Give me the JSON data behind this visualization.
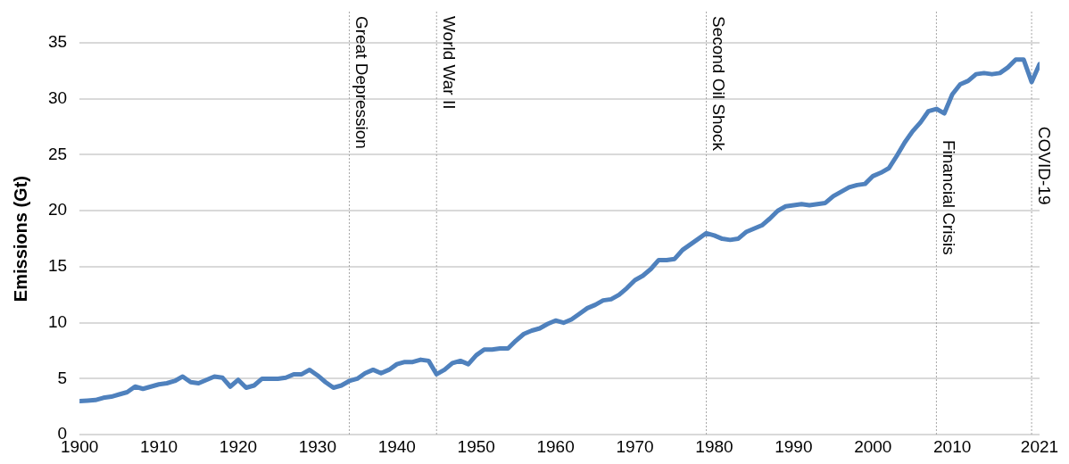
{
  "chart_data": {
    "type": "line",
    "ylabel": "Emissions (Gt)",
    "x": [
      1900,
      1901,
      1902,
      1903,
      1904,
      1905,
      1906,
      1907,
      1908,
      1909,
      1910,
      1911,
      1912,
      1913,
      1914,
      1915,
      1916,
      1917,
      1918,
      1919,
      1920,
      1921,
      1922,
      1923,
      1924,
      1925,
      1926,
      1927,
      1928,
      1929,
      1930,
      1931,
      1932,
      1933,
      1934,
      1935,
      1936,
      1937,
      1938,
      1939,
      1940,
      1941,
      1942,
      1943,
      1944,
      1945,
      1946,
      1947,
      1948,
      1949,
      1950,
      1951,
      1952,
      1953,
      1954,
      1955,
      1956,
      1957,
      1958,
      1959,
      1960,
      1961,
      1962,
      1963,
      1964,
      1965,
      1966,
      1967,
      1968,
      1969,
      1970,
      1971,
      1972,
      1973,
      1974,
      1975,
      1976,
      1977,
      1978,
      1979,
      1980,
      1981,
      1982,
      1983,
      1984,
      1985,
      1986,
      1987,
      1988,
      1989,
      1990,
      1991,
      1992,
      1993,
      1994,
      1995,
      1996,
      1997,
      1998,
      1999,
      2000,
      2001,
      2002,
      2003,
      2004,
      2005,
      2006,
      2007,
      2008,
      2009,
      2010,
      2011,
      2012,
      2013,
      2014,
      2015,
      2016,
      2017,
      2018,
      2019,
      2020,
      2021
    ],
    "series": [
      {
        "color": "#4f81bd",
        "values": [
          3.0,
          3.05,
          3.1,
          3.3,
          3.4,
          3.6,
          3.8,
          4.3,
          4.1,
          4.3,
          4.5,
          4.6,
          4.8,
          5.2,
          4.7,
          4.6,
          4.9,
          5.2,
          5.1,
          4.3,
          4.9,
          4.2,
          4.4,
          5.0,
          5.0,
          5.0,
          5.1,
          5.4,
          5.4,
          5.8,
          5.3,
          4.7,
          4.2,
          4.4,
          4.8,
          5.0,
          5.5,
          5.8,
          5.5,
          5.8,
          6.3,
          6.5,
          6.5,
          6.7,
          6.6,
          5.4,
          5.8,
          6.4,
          6.6,
          6.3,
          7.1,
          7.6,
          7.6,
          7.7,
          7.7,
          8.4,
          9.0,
          9.3,
          9.5,
          9.9,
          10.2,
          10.0,
          10.3,
          10.8,
          11.3,
          11.6,
          12.0,
          12.1,
          12.5,
          13.1,
          13.8,
          14.2,
          14.8,
          15.6,
          15.6,
          15.7,
          16.5,
          17.0,
          17.5,
          18.0,
          17.8,
          17.5,
          17.4,
          17.5,
          18.1,
          18.4,
          18.7,
          19.3,
          20.0,
          20.4,
          20.5,
          20.6,
          20.5,
          20.6,
          20.7,
          21.3,
          21.7,
          22.1,
          22.3,
          22.4,
          23.1,
          23.4,
          23.8,
          24.9,
          26.1,
          27.1,
          27.9,
          28.9,
          29.1,
          28.7,
          30.4,
          31.3,
          31.6,
          32.2,
          32.3,
          32.2,
          32.3,
          32.8,
          33.5,
          33.5,
          31.5,
          33.1
        ]
      }
    ],
    "xlim": [
      1900,
      2021
    ],
    "ylim": [
      0,
      35
    ],
    "xticks": [
      1900,
      1910,
      1920,
      1930,
      1940,
      1950,
      1960,
      1970,
      1980,
      1990,
      2000,
      2010,
      2021
    ],
    "yticks": [
      0,
      5,
      10,
      15,
      20,
      25,
      30,
      35
    ],
    "grid": "y",
    "marker": "none",
    "line_style": "solid",
    "ref_lines": [
      {
        "axis": "x",
        "value": 1934,
        "label": "Great Depression",
        "color": "#a6a6a6",
        "line_style": "dotted"
      },
      {
        "axis": "x",
        "value": 1945,
        "label": "World War II",
        "color": "#a6a6a6",
        "line_style": "dotted"
      },
      {
        "axis": "x",
        "value": 1979,
        "label": "Second Oil Shock",
        "color": "#a6a6a6",
        "line_style": "dotted"
      },
      {
        "axis": "x",
        "value": 2008,
        "label": "Financial Crisis",
        "color": "#a6a6a6",
        "line_style": "dotted"
      },
      {
        "axis": "x",
        "value": 2020,
        "label": "COVID-19",
        "color": "#a6a6a6",
        "line_style": "dotted"
      }
    ]
  }
}
